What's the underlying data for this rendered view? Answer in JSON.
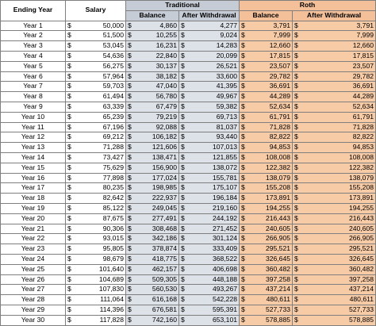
{
  "headers": {
    "ending_year": "Ending Year",
    "salary": "Salary",
    "traditional": "Traditional",
    "roth": "Roth",
    "balance": "Balance",
    "after_withdrawal": "After Withdrawal"
  },
  "currency_symbol": "$",
  "colors": {
    "traditional_header": "#c6ccd6",
    "traditional_cells": "#dde1e8",
    "roth_header": "#f4c09a",
    "roth_cells": "#f8cba7"
  },
  "rows": [
    {
      "year": "Year 1",
      "salary": "50,000",
      "trad_balance": "4,860",
      "trad_after": "4,277",
      "roth_balance": "3,791",
      "roth_after": "3,791"
    },
    {
      "year": "Year 2",
      "salary": "51,500",
      "trad_balance": "10,255",
      "trad_after": "9,024",
      "roth_balance": "7,999",
      "roth_after": "7,999"
    },
    {
      "year": "Year 3",
      "salary": "53,045",
      "trad_balance": "16,231",
      "trad_after": "14,283",
      "roth_balance": "12,660",
      "roth_after": "12,660"
    },
    {
      "year": "Year 4",
      "salary": "54,636",
      "trad_balance": "22,840",
      "trad_after": "20,099",
      "roth_balance": "17,815",
      "roth_after": "17,815"
    },
    {
      "year": "Year 5",
      "salary": "56,275",
      "trad_balance": "30,137",
      "trad_after": "26,521",
      "roth_balance": "23,507",
      "roth_after": "23,507"
    },
    {
      "year": "Year 6",
      "salary": "57,964",
      "trad_balance": "38,182",
      "trad_after": "33,600",
      "roth_balance": "29,782",
      "roth_after": "29,782"
    },
    {
      "year": "Year 7",
      "salary": "59,703",
      "trad_balance": "47,040",
      "trad_after": "41,395",
      "roth_balance": "36,691",
      "roth_after": "36,691"
    },
    {
      "year": "Year 8",
      "salary": "61,494",
      "trad_balance": "56,780",
      "trad_after": "49,967",
      "roth_balance": "44,289",
      "roth_after": "44,289"
    },
    {
      "year": "Year 9",
      "salary": "63,339",
      "trad_balance": "67,479",
      "trad_after": "59,382",
      "roth_balance": "52,634",
      "roth_after": "52,634"
    },
    {
      "year": "Year 10",
      "salary": "65,239",
      "trad_balance": "79,219",
      "trad_after": "69,713",
      "roth_balance": "61,791",
      "roth_after": "61,791"
    },
    {
      "year": "Year 11",
      "salary": "67,196",
      "trad_balance": "92,088",
      "trad_after": "81,037",
      "roth_balance": "71,828",
      "roth_after": "71,828"
    },
    {
      "year": "Year 12",
      "salary": "69,212",
      "trad_balance": "106,182",
      "trad_after": "93,440",
      "roth_balance": "82,822",
      "roth_after": "82,822"
    },
    {
      "year": "Year 13",
      "salary": "71,288",
      "trad_balance": "121,606",
      "trad_after": "107,013",
      "roth_balance": "94,853",
      "roth_after": "94,853"
    },
    {
      "year": "Year 14",
      "salary": "73,427",
      "trad_balance": "138,471",
      "trad_after": "121,855",
      "roth_balance": "108,008",
      "roth_after": "108,008"
    },
    {
      "year": "Year 15",
      "salary": "75,629",
      "trad_balance": "156,900",
      "trad_after": "138,072",
      "roth_balance": "122,382",
      "roth_after": "122,382"
    },
    {
      "year": "Year 16",
      "salary": "77,898",
      "trad_balance": "177,024",
      "trad_after": "155,781",
      "roth_balance": "138,079",
      "roth_after": "138,079"
    },
    {
      "year": "Year 17",
      "salary": "80,235",
      "trad_balance": "198,985",
      "trad_after": "175,107",
      "roth_balance": "155,208",
      "roth_after": "155,208"
    },
    {
      "year": "Year 18",
      "salary": "82,642",
      "trad_balance": "222,937",
      "trad_after": "196,184",
      "roth_balance": "173,891",
      "roth_after": "173,891"
    },
    {
      "year": "Year 19",
      "salary": "85,122",
      "trad_balance": "249,045",
      "trad_after": "219,160",
      "roth_balance": "194,255",
      "roth_after": "194,255"
    },
    {
      "year": "Year 20",
      "salary": "87,675",
      "trad_balance": "277,491",
      "trad_after": "244,192",
      "roth_balance": "216,443",
      "roth_after": "216,443"
    },
    {
      "year": "Year 21",
      "salary": "90,306",
      "trad_balance": "308,468",
      "trad_after": "271,452",
      "roth_balance": "240,605",
      "roth_after": "240,605"
    },
    {
      "year": "Year 22",
      "salary": "93,015",
      "trad_balance": "342,186",
      "trad_after": "301,124",
      "roth_balance": "266,905",
      "roth_after": "266,905"
    },
    {
      "year": "Year 23",
      "salary": "95,805",
      "trad_balance": "378,874",
      "trad_after": "333,409",
      "roth_balance": "295,521",
      "roth_after": "295,521"
    },
    {
      "year": "Year 24",
      "salary": "98,679",
      "trad_balance": "418,775",
      "trad_after": "368,522",
      "roth_balance": "326,645",
      "roth_after": "326,645"
    },
    {
      "year": "Year 25",
      "salary": "101,640",
      "trad_balance": "462,157",
      "trad_after": "406,698",
      "roth_balance": "360,482",
      "roth_after": "360,482"
    },
    {
      "year": "Year 26",
      "salary": "104,689",
      "trad_balance": "509,305",
      "trad_after": "448,188",
      "roth_balance": "397,258",
      "roth_after": "397,258"
    },
    {
      "year": "Year 27",
      "salary": "107,830",
      "trad_balance": "560,530",
      "trad_after": "493,267",
      "roth_balance": "437,214",
      "roth_after": "437,214"
    },
    {
      "year": "Year 28",
      "salary": "111,064",
      "trad_balance": "616,168",
      "trad_after": "542,228",
      "roth_balance": "480,611",
      "roth_after": "480,611"
    },
    {
      "year": "Year 29",
      "salary": "114,396",
      "trad_balance": "676,581",
      "trad_after": "595,391",
      "roth_balance": "527,733",
      "roth_after": "527,733"
    },
    {
      "year": "Year 30",
      "salary": "117,828",
      "trad_balance": "742,160",
      "trad_after": "653,101",
      "roth_balance": "578,885",
      "roth_after": "578,885"
    }
  ]
}
